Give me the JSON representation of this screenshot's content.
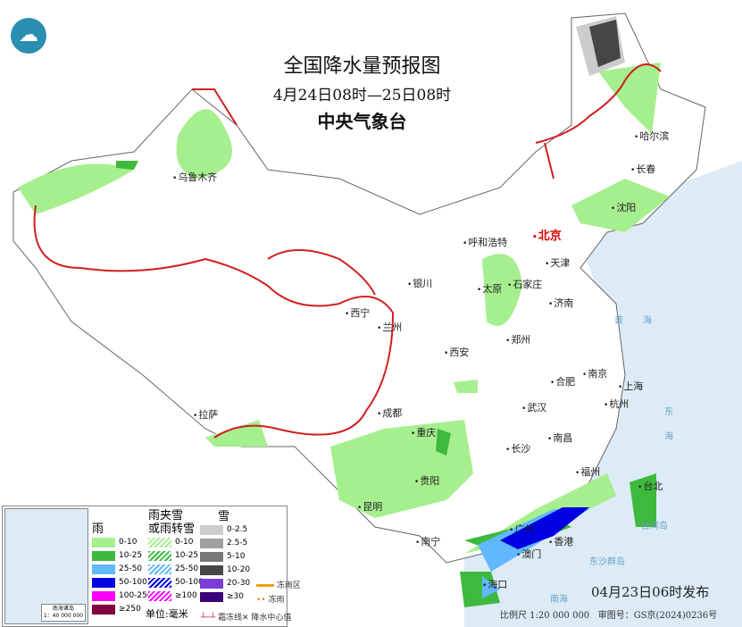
{
  "header": {
    "title": "全国降水量预报图",
    "period": "4月24日08时—25日08时",
    "agency": "中央气象台",
    "logo_icon": "cma-logo"
  },
  "cities": [
    "乌鲁木齐",
    "哈尔滨",
    "长春",
    "沈阳",
    "呼和浩特",
    "北京",
    "天津",
    "银川",
    "太原",
    "石家庄",
    "西宁",
    "兰州",
    "济南",
    "郑州",
    "西安",
    "合肥",
    "南京",
    "上海",
    "拉萨",
    "成都",
    "武汉",
    "杭州",
    "重庆",
    "长沙",
    "南昌",
    "贵阳",
    "福州",
    "台北",
    "昆明",
    "南宁",
    "广州",
    "香港",
    "澳门",
    "海口"
  ],
  "seas": [
    "黄",
    "海",
    "东",
    "海",
    "台湾岛",
    "东沙群岛",
    "南海"
  ],
  "legend": {
    "rain": {
      "title": "雨",
      "items": [
        {
          "label": "0-10",
          "color": "#a6ef8e"
        },
        {
          "label": "10-25",
          "color": "#3dba3d"
        },
        {
          "label": "25-50",
          "color": "#61b8ff"
        },
        {
          "label": "50-100",
          "color": "#0000e1"
        },
        {
          "label": "100-250",
          "color": "#fa00fa"
        },
        {
          "label": "≥250",
          "color": "#800040"
        }
      ]
    },
    "sleet": {
      "title1": "雨夹雪",
      "title2": "或雨转雪",
      "items": [
        {
          "label": "0-10",
          "color": "#a6ef8e"
        },
        {
          "label": "10-25",
          "color": "#3dba3d"
        },
        {
          "label": "25-50",
          "color": "#61b8ff"
        },
        {
          "label": "50-100",
          "color": "#0000e1"
        },
        {
          "label": "≥100",
          "color": "#fa00fa"
        }
      ]
    },
    "snow": {
      "title": "雪",
      "items": [
        {
          "label": "0-2.5",
          "color": "#cccccc"
        },
        {
          "label": "2.5-5",
          "color": "#a0a0a0"
        },
        {
          "label": "5-10",
          "color": "#787878"
        },
        {
          "label": "10-20",
          "color": "#464646"
        },
        {
          "label": "20-30",
          "color": "#7a3cd8"
        },
        {
          "label": "≥30",
          "color": "#3c0078"
        }
      ]
    },
    "unit": "单位:毫米",
    "freezing_rain_area": "冻雨区",
    "freezing_rain": "冻雨",
    "frost_line": "霜冻线",
    "center_value": "降水中心值",
    "inset_caption": "南海诸岛",
    "inset_scale": "1：40 000 000"
  },
  "footer": {
    "issued": "04月23日06时发布",
    "scale": "比例尺  1:20 000 000",
    "review_no": "审图号：GS京(2024)0236号"
  }
}
